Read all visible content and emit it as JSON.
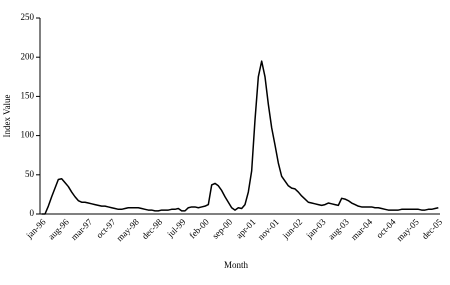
{
  "chart_data": {
    "type": "line",
    "x_label": "Month",
    "y_label": "Index Value",
    "categories": [
      "jan-96",
      null,
      null,
      null,
      null,
      null,
      null,
      "aug-96",
      null,
      null,
      null,
      null,
      null,
      null,
      "mar-97",
      null,
      null,
      null,
      null,
      null,
      null,
      "oct-97",
      null,
      null,
      null,
      null,
      null,
      null,
      "may-98",
      null,
      null,
      null,
      null,
      null,
      null,
      "dec-98",
      null,
      null,
      null,
      null,
      null,
      null,
      "jul-99",
      null,
      null,
      null,
      null,
      null,
      null,
      "feb-00",
      null,
      null,
      null,
      null,
      null,
      null,
      "sep-00",
      null,
      null,
      null,
      null,
      null,
      null,
      "apr-01",
      null,
      null,
      null,
      null,
      null,
      null,
      "nov-01",
      null,
      null,
      null,
      null,
      null,
      null,
      "jun-02",
      null,
      null,
      null,
      null,
      null,
      null,
      "jan-03",
      null,
      null,
      null,
      null,
      null,
      null,
      "aug-03",
      null,
      null,
      null,
      null,
      null,
      null,
      "mar-04",
      null,
      null,
      null,
      null,
      null,
      null,
      "oct-04",
      null,
      null,
      null,
      null,
      null,
      null,
      "may-05",
      null,
      null,
      null,
      null,
      null,
      null,
      "dec-05"
    ],
    "series": [
      {
        "name": "Index Value",
        "color": "#000000",
        "values": [
          0,
          0,
          10,
          22,
          33,
          44,
          45,
          40,
          35,
          28,
          22,
          17,
          15,
          15,
          14,
          13,
          12,
          11,
          10,
          10,
          9,
          8,
          7,
          6,
          6,
          7,
          8,
          8,
          8,
          8,
          7,
          6,
          5,
          5,
          4,
          4,
          5,
          5,
          5,
          6,
          6,
          7,
          4,
          4,
          8,
          9,
          9,
          8,
          9,
          10,
          12,
          37,
          39,
          36,
          30,
          22,
          15,
          8,
          5,
          8,
          7,
          12,
          28,
          55,
          120,
          175,
          195,
          175,
          140,
          110,
          88,
          65,
          48,
          42,
          36,
          33,
          32,
          28,
          23,
          19,
          15,
          14,
          13,
          12,
          11,
          12,
          14,
          13,
          12,
          11,
          20,
          19,
          17,
          14,
          12,
          10,
          9,
          9,
          9,
          9,
          8,
          8,
          7,
          6,
          5,
          5,
          5,
          5,
          6,
          6,
          6,
          6,
          6,
          6,
          5,
          5,
          6,
          6,
          7,
          8
        ]
      }
    ],
    "ylim": [
      0,
      250
    ],
    "yticks": [
      0,
      50,
      100,
      150,
      200,
      250
    ]
  }
}
